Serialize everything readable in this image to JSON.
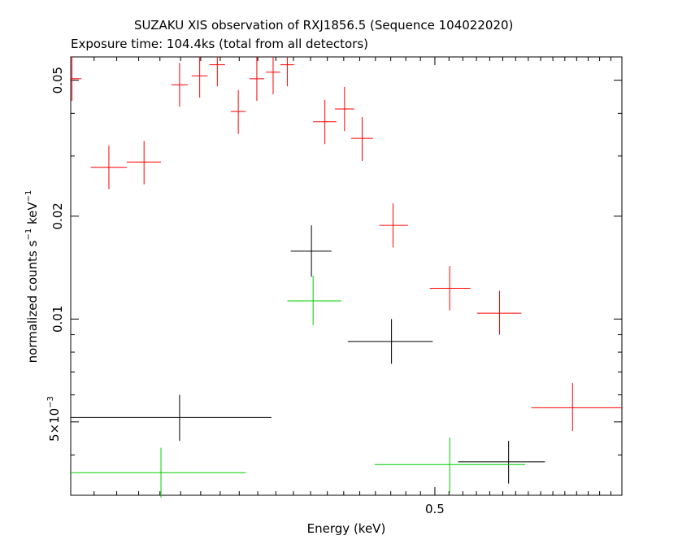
{
  "chart_data": {
    "type": "scatter",
    "title": "SUZAKU XIS observation of RXJ1856.5 (Sequence 104022020)",
    "subtitle": "Exposure time: 104.4ks (total from all detectors)",
    "xlabel": "Energy (keV)",
    "ylabel": "normalized counts s",
    "ylabel_sup1": "−1",
    "ylabel_mid": " keV",
    "ylabel_sup2": "−1",
    "xscale": "log",
    "yscale": "log",
    "xlim": [
      0.3,
      0.65
    ],
    "ylim": [
      0.00305,
      0.0585
    ],
    "x_tick_labels": [
      {
        "value": 0.5,
        "label": "0.5"
      }
    ],
    "y_tick_labels": [
      {
        "value": 0.01,
        "label": "0.01"
      },
      {
        "value": 0.02,
        "label": "0.02"
      },
      {
        "value": 0.05,
        "label": "0.05"
      }
    ],
    "y_tick_sci": {
      "value": 0.005,
      "mantissa": "5×10",
      "exponent": "−3"
    },
    "series": [
      {
        "color": "#ff0000",
        "points": [
          {
            "x": 0.3005,
            "xerr": [
              0.3,
              0.3045
            ],
            "y": 0.0505,
            "yerr": [
              0.0435,
              0.0585
            ]
          },
          {
            "x": 0.3165,
            "xerr": [
              0.3085,
              0.3245
            ],
            "y": 0.0278,
            "yerr": [
              0.024,
              0.0322
            ]
          },
          {
            "x": 0.3325,
            "xerr": [
              0.3245,
              0.3405
            ],
            "y": 0.0288,
            "yerr": [
              0.0248,
              0.0332
            ]
          },
          {
            "x": 0.3495,
            "xerr": [
              0.3455,
              0.3535
            ],
            "y": 0.0485,
            "yerr": [
              0.0418,
              0.0562
            ]
          },
          {
            "x": 0.3595,
            "xerr": [
              0.3555,
              0.3635
            ],
            "y": 0.0515,
            "yerr": [
              0.0445,
              0.0585
            ]
          },
          {
            "x": 0.3685,
            "xerr": [
              0.3645,
              0.3725
            ],
            "y": 0.0555,
            "yerr": [
              0.048,
              0.0585
            ]
          },
          {
            "x": 0.3795,
            "xerr": [
              0.3755,
              0.3835
            ],
            "y": 0.0405,
            "yerr": [
              0.0348,
              0.0468
            ]
          },
          {
            "x": 0.3895,
            "xerr": [
              0.3855,
              0.3935
            ],
            "y": 0.0505,
            "yerr": [
              0.0435,
              0.0585
            ]
          },
          {
            "x": 0.3985,
            "xerr": [
              0.3945,
              0.4025
            ],
            "y": 0.0528,
            "yerr": [
              0.0455,
              0.0585
            ]
          },
          {
            "x": 0.4065,
            "xerr": [
              0.4025,
              0.4105
            ],
            "y": 0.0555,
            "yerr": [
              0.048,
              0.0585
            ]
          },
          {
            "x": 0.4285,
            "xerr": [
              0.4215,
              0.4355
            ],
            "y": 0.0378,
            "yerr": [
              0.0325,
              0.0438
            ]
          },
          {
            "x": 0.4405,
            "xerr": [
              0.4345,
              0.4465
            ],
            "y": 0.0412,
            "yerr": [
              0.0355,
              0.0478
            ]
          },
          {
            "x": 0.4515,
            "xerr": [
              0.4445,
              0.4585
            ],
            "y": 0.0338,
            "yerr": [
              0.029,
              0.039
            ]
          },
          {
            "x": 0.4715,
            "xerr": [
              0.4625,
              0.4815
            ],
            "y": 0.0188,
            "yerr": [
              0.0162,
              0.0218
            ]
          },
          {
            "x": 0.5105,
            "xerr": [
              0.4965,
              0.5255
            ],
            "y": 0.0123,
            "yerr": [
              0.0106,
              0.0143
            ]
          },
          {
            "x": 0.5475,
            "xerr": [
              0.5305,
              0.5645
            ],
            "y": 0.0104,
            "yerr": [
              0.009,
              0.0121
            ]
          },
          {
            "x": 0.6065,
            "xerr": [
              0.5725,
              0.65
            ],
            "y": 0.0055,
            "yerr": [
              0.0047,
              0.0065
            ]
          }
        ]
      },
      {
        "color": "#000000",
        "points": [
          {
            "x": 0.3495,
            "xerr": [
              0.3,
              0.3975
            ],
            "y": 0.00515,
            "yerr": [
              0.0044,
              0.006
            ]
          },
          {
            "x": 0.4205,
            "xerr": [
              0.4085,
              0.4325
            ],
            "y": 0.0158,
            "yerr": [
              0.0133,
              0.0188
            ]
          },
          {
            "x": 0.4705,
            "xerr": [
              0.4425,
              0.4985
            ],
            "y": 0.0086,
            "yerr": [
              0.0074,
              0.01
            ]
          },
          {
            "x": 0.5545,
            "xerr": [
              0.5165,
              0.5835
            ],
            "y": 0.00382,
            "yerr": [
              0.0033,
              0.0044
            ]
          }
        ]
      },
      {
        "color": "#00cc00",
        "points": [
          {
            "x": 0.3405,
            "xerr": [
              0.3,
              0.3835
            ],
            "y": 0.00355,
            "yerr": [
              0.003,
              0.0042
            ]
          },
          {
            "x": 0.4215,
            "xerr": [
              0.4065,
              0.4385
            ],
            "y": 0.0113,
            "yerr": [
              0.0096,
              0.0134
            ]
          },
          {
            "x": 0.5105,
            "xerr": [
              0.4595,
              0.5675
            ],
            "y": 0.00375,
            "yerr": [
              0.0031,
              0.0045
            ]
          }
        ]
      }
    ]
  }
}
